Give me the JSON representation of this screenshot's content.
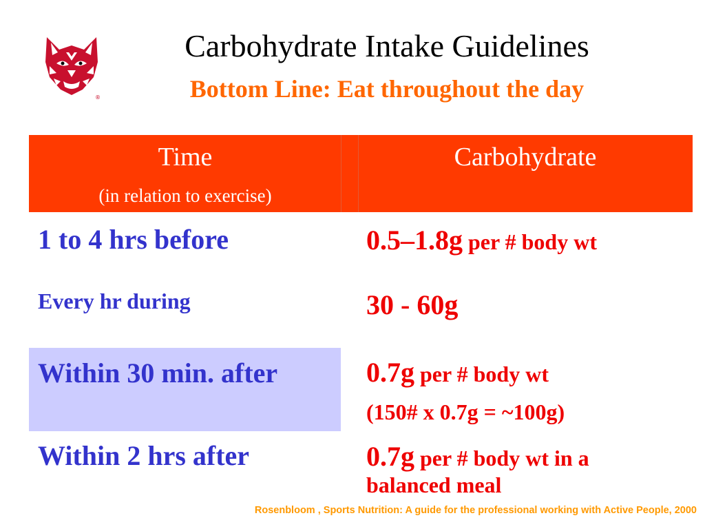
{
  "title": "Carbohydrate Intake Guidelines",
  "subtitle": "Bottom Line: Eat throughout the day",
  "logo": {
    "icon": "wildcat-head-logo",
    "color": "#c8102e"
  },
  "table": {
    "header": {
      "time": "Time",
      "time_sub": "(in relation to exercise)",
      "carbohydrate": "Carbohydrate",
      "background": "#ff3a00"
    },
    "rows": [
      {
        "time": "1 to 4 hrs before",
        "amount": "0.5–1.8g",
        "unit": " per # body wt"
      },
      {
        "time": "Every hr during",
        "amount": "30 - 60g"
      },
      {
        "time": "Within 30 min. after",
        "amount": "0.7g",
        "unit": " per # body wt",
        "note": "(150# x 0.7g = ~100g)"
      },
      {
        "time": "Within 2 hrs after",
        "amount": "0.7g",
        "unit": " per # body wt in a balanced meal"
      }
    ]
  },
  "colors": {
    "time_text": "#3333cc",
    "carb_text": "#ee0000",
    "highlight": "#ccccff",
    "subtitle": "#ff6600",
    "citation": "#ff9900"
  },
  "citation": "Rosenbloom , Sports Nutrition: A guide for the professional working with Active People, 2000"
}
